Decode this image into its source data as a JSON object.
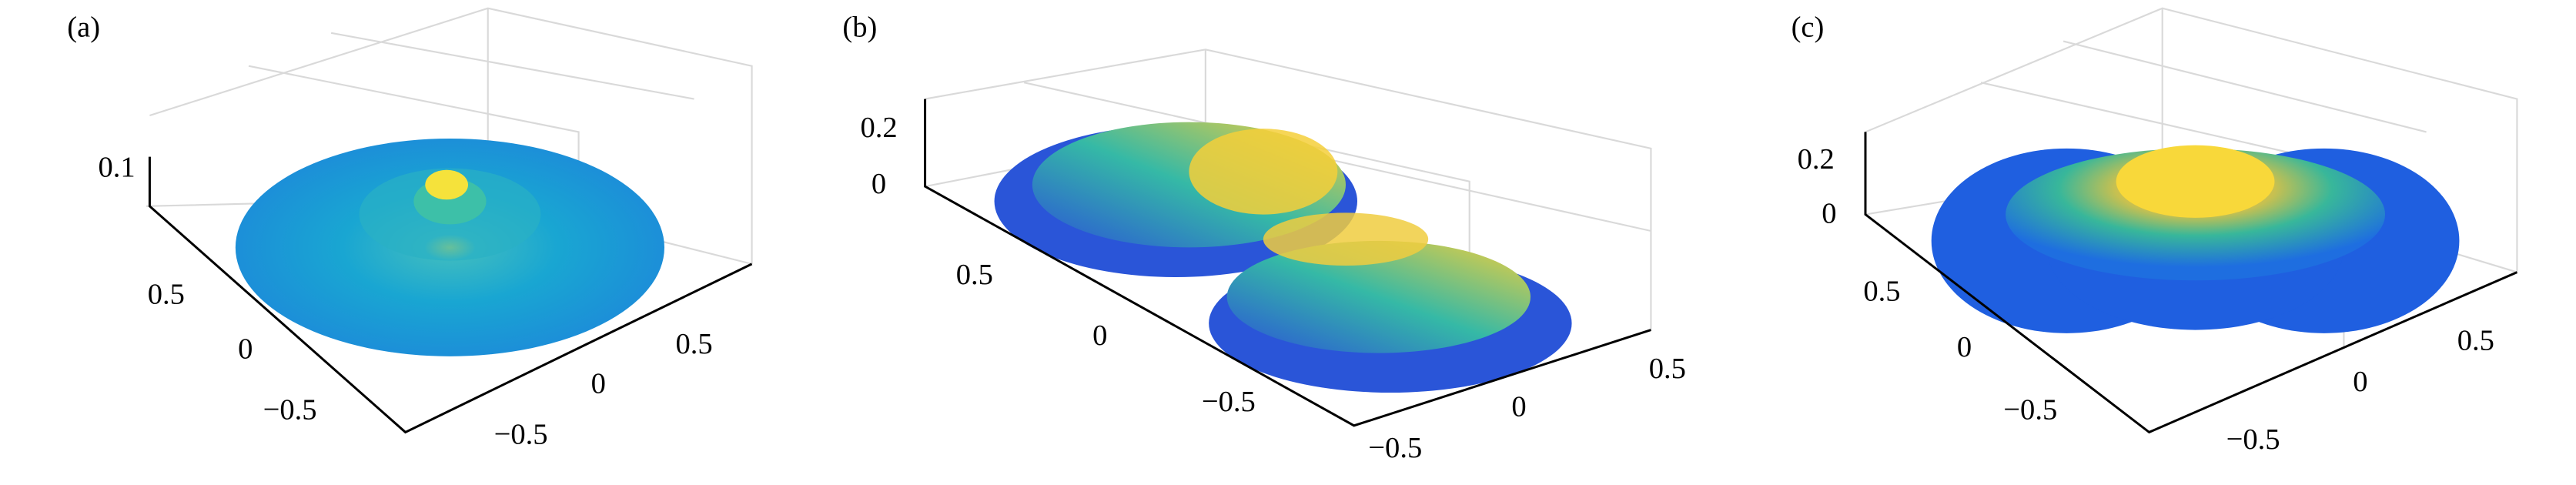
{
  "panels": [
    {
      "label": "(a)",
      "z_ticks": [
        "0.1"
      ],
      "y_ticks": [
        "0.5",
        "0",
        "−0.5"
      ],
      "x_ticks": [
        "0.5",
        "0",
        "−0.5"
      ]
    },
    {
      "label": "(b)",
      "z_ticks": [
        "0.2",
        "0"
      ],
      "y_ticks": [
        "0.5",
        "0",
        "−0.5"
      ],
      "x_ticks": [
        "0.5",
        "0",
        "−0.5"
      ]
    },
    {
      "label": "(c)",
      "z_ticks": [
        "0.2",
        "0"
      ],
      "y_ticks": [
        "0.5",
        "0",
        "−0.5"
      ],
      "x_ticks": [
        "0.5",
        "0",
        "−0.5"
      ]
    }
  ]
}
